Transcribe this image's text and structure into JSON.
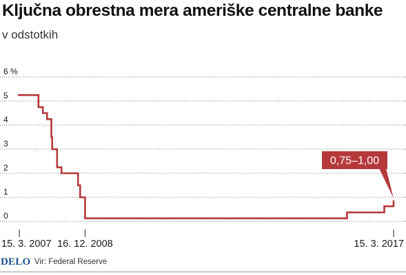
{
  "header": {
    "title": "Ključna obrestna mera ameriške centralne banke",
    "subtitle": "v odstotkih"
  },
  "footer": {
    "brand": "DELO",
    "source": "Vir: Federal Reserve"
  },
  "colors": {
    "line": "#b5393b",
    "callout": "#b5393b",
    "grid": "#444444",
    "text": "#1a1a1a"
  },
  "chart_data": {
    "type": "line",
    "title": "Ključna obrestna mera ameriške centralne banke",
    "subtitle": "v odstotkih",
    "xlabel": "",
    "ylabel": "",
    "y_unit": "%",
    "ylim": [
      0,
      6
    ],
    "yticks": [
      0,
      1,
      2,
      3,
      4,
      5,
      6
    ],
    "ytick_labels": [
      "0",
      "1",
      "2",
      "3",
      "4",
      "5",
      "6 %"
    ],
    "xlim": [
      "2007-03-15",
      "2017-03-15"
    ],
    "xticks": [
      "2007-03-15",
      "2008-12-16",
      "2017-03-15"
    ],
    "xtick_labels": [
      "15. 3. 2007",
      "16. 12. 2008",
      "15. 3. 2017"
    ],
    "grid": "horizontal dotted",
    "step": "post",
    "series": [
      {
        "x": [
          "2006-09-01",
          "2007-09-18",
          "2007-10-31",
          "2007-12-11",
          "2008-01-22",
          "2008-01-30",
          "2008-03-18",
          "2008-04-30",
          "2008-10-08",
          "2008-10-29",
          "2008-12-16",
          "2015-12-16",
          "2016-12-14",
          "2017-03-15"
        ],
        "values": [
          5.25,
          4.75,
          4.5,
          4.25,
          3.5,
          3.0,
          2.25,
          2.0,
          1.5,
          1.0,
          0.125,
          0.375,
          0.625,
          0.875
        ]
      }
    ],
    "annotations": [
      {
        "text": "0,75–1,00",
        "x": "2017-03-15",
        "y": 0.875
      }
    ]
  }
}
